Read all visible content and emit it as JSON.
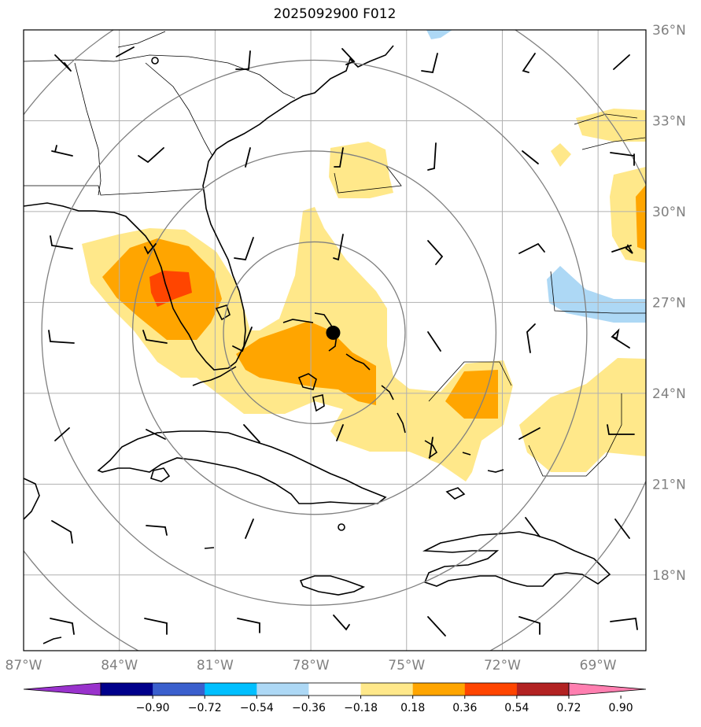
{
  "title": "2025092900 F012",
  "map": {
    "lon_range": [
      -87,
      -67.5
    ],
    "lat_range": [
      15.5,
      36
    ],
    "lat_labels": [
      {
        "lat": 36,
        "text": "36°N"
      },
      {
        "lat": 33,
        "text": "33°N"
      },
      {
        "lat": 30,
        "text": "30°N"
      },
      {
        "lat": 27,
        "text": "27°N"
      },
      {
        "lat": 24,
        "text": "24°N"
      },
      {
        "lat": 21,
        "text": "21°N"
      },
      {
        "lat": 18,
        "text": "18°N"
      }
    ],
    "lon_labels": [
      {
        "lon": -87,
        "text": "87°W"
      },
      {
        "lon": -84,
        "text": "84°W"
      },
      {
        "lon": -81,
        "text": "81°W"
      },
      {
        "lon": -78,
        "text": "78°W"
      },
      {
        "lon": -75,
        "text": "75°W"
      },
      {
        "lon": -72,
        "text": "72°W"
      },
      {
        "lon": -69,
        "text": "69°W"
      }
    ],
    "storm_center": {
      "lon": -77.3,
      "lat": 26.0
    },
    "range_ring_radii_deg": [
      3.0,
      6.0,
      9.0,
      12.0
    ]
  },
  "colorbar": {
    "ticks": [
      "−0.90",
      "−0.72",
      "−0.54",
      "−0.36",
      "−0.18",
      "0.18",
      "0.36",
      "0.54",
      "0.72",
      "0.90"
    ],
    "colors": [
      "#9932cc",
      "#00008b",
      "#3a5fcd",
      "#00bfff",
      "#add8f5",
      "#ffffff",
      "#ffe88a",
      "#ffa500",
      "#ff4500",
      "#b22222",
      "#ff7fb0"
    ]
  },
  "field_colors": {
    "light_yellow": "#ffe88a",
    "orange": "#ffa500",
    "red_orange": "#ff4500",
    "light_blue": "#add8f5"
  }
}
